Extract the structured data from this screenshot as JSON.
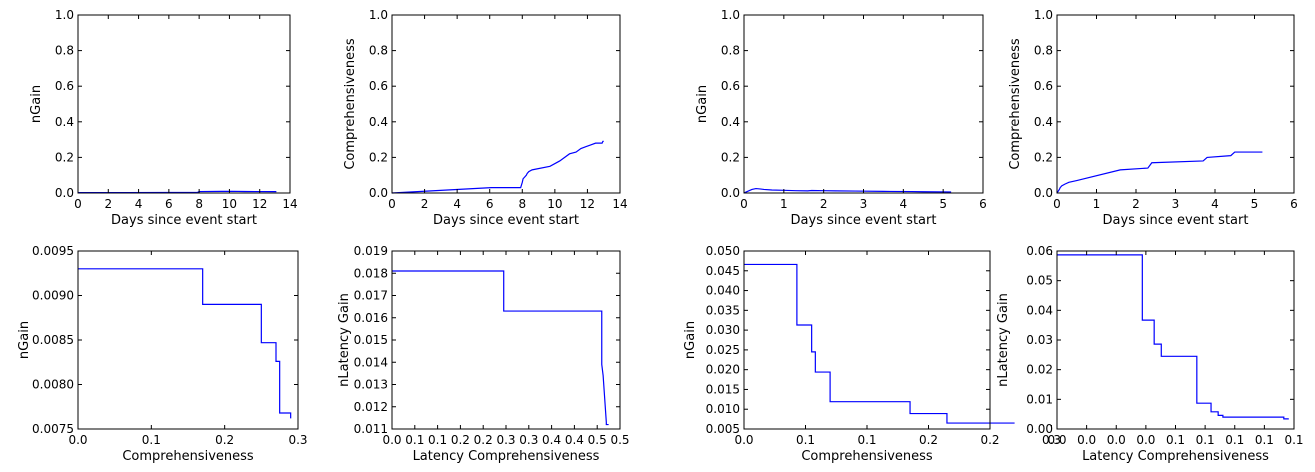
{
  "chart_data": [
    {
      "type": "line",
      "xlabel": "Days since event start",
      "ylabel": "nGain",
      "xlim": [
        0,
        14
      ],
      "ylim": [
        0.0,
        1.0
      ],
      "xticks": [
        "0",
        "2",
        "4",
        "6",
        "8",
        "10",
        "12",
        "14"
      ],
      "yticks": [
        "0.0",
        "0.2",
        "0.4",
        "0.6",
        "0.8",
        "1.0"
      ],
      "series": [
        {
          "color": "#0000ff",
          "x": [
            0,
            6,
            7.9,
            8.0,
            9.5,
            10.2,
            11,
            12,
            13.1
          ],
          "y": [
            0.002,
            0.003,
            0.004,
            0.008,
            0.009,
            0.0095,
            0.0085,
            0.008,
            0.0075
          ]
        }
      ]
    },
    {
      "type": "line",
      "xlabel": "Days since event start",
      "ylabel": "Comprehensiveness",
      "xlim": [
        0,
        14
      ],
      "ylim": [
        0.0,
        1.0
      ],
      "xticks": [
        "0",
        "2",
        "4",
        "6",
        "8",
        "10",
        "12",
        "14"
      ],
      "yticks": [
        "0.0",
        "0.2",
        "0.4",
        "0.6",
        "0.8",
        "1.0"
      ],
      "series": [
        {
          "color": "#0000ff",
          "x": [
            0,
            6.1,
            7.9,
            8.0,
            8.05,
            8.15,
            8.25,
            8.3,
            8.4,
            8.6,
            9.7,
            10.3,
            10.9,
            11.3,
            11.6,
            11.9,
            12.2,
            12.5,
            12.9,
            12.95,
            13.0
          ],
          "y": [
            0.0,
            0.03,
            0.03,
            0.06,
            0.08,
            0.09,
            0.1,
            0.11,
            0.12,
            0.13,
            0.15,
            0.18,
            0.22,
            0.23,
            0.25,
            0.26,
            0.27,
            0.28,
            0.28,
            0.29,
            0.29
          ]
        }
      ]
    },
    {
      "type": "line",
      "xlabel": "Days since event start",
      "ylabel": "nGain",
      "xlim": [
        0,
        6
      ],
      "ylim": [
        0.0,
        1.0
      ],
      "xticks": [
        "0",
        "1",
        "2",
        "3",
        "4",
        "5",
        "6"
      ],
      "yticks": [
        "0.0",
        "0.2",
        "0.4",
        "0.6",
        "0.8",
        "1.0"
      ],
      "series": [
        {
          "color": "#0000ff",
          "x": [
            0.0,
            0.05,
            0.1,
            0.15,
            0.2,
            0.3,
            0.4,
            0.5,
            0.7,
            1.0,
            1.3,
            1.6,
            1.7,
            2.0,
            2.3,
            2.8,
            3.5,
            4.2,
            4.5,
            5.2
          ],
          "y": [
            0.0,
            0.005,
            0.01,
            0.015,
            0.02,
            0.025,
            0.023,
            0.02,
            0.017,
            0.015,
            0.013,
            0.012,
            0.014,
            0.013,
            0.012,
            0.011,
            0.009,
            0.008,
            0.007,
            0.006
          ]
        }
      ]
    },
    {
      "type": "line",
      "xlabel": "Days since event start",
      "ylabel": "Comprehensiveness",
      "xlim": [
        0,
        6
      ],
      "ylim": [
        0.0,
        1.0
      ],
      "xticks": [
        "0",
        "1",
        "2",
        "3",
        "4",
        "5",
        "6"
      ],
      "yticks": [
        "0.0",
        "0.2",
        "0.4",
        "0.6",
        "0.8",
        "1.0"
      ],
      "series": [
        {
          "color": "#0000ff",
          "x": [
            0.0,
            0.03,
            0.06,
            0.08,
            0.12,
            0.2,
            0.3,
            0.5,
            1.6,
            2.3,
            2.4,
            3.7,
            3.8,
            4.4,
            4.5,
            5.2
          ],
          "y": [
            0.0,
            0.01,
            0.02,
            0.03,
            0.04,
            0.05,
            0.06,
            0.07,
            0.13,
            0.14,
            0.17,
            0.18,
            0.2,
            0.21,
            0.23,
            0.23
          ]
        }
      ]
    },
    {
      "type": "line",
      "xlabel": "Comprehensiveness",
      "ylabel": "nGain",
      "xlim": [
        0.0,
        0.3
      ],
      "ylim": [
        0.0075,
        0.0095
      ],
      "xticks": [
        "0.0",
        "0.1",
        "0.2",
        "0.3"
      ],
      "yticks": [
        "0.0075",
        "0.0080",
        "0.0085",
        "0.0090",
        "0.0095"
      ],
      "series": [
        {
          "color": "#0000ff",
          "x": [
            0.0,
            0.17,
            0.17,
            0.25,
            0.25,
            0.27,
            0.27,
            0.275,
            0.275,
            0.29,
            0.29
          ],
          "y": [
            0.0093,
            0.0093,
            0.0089,
            0.0089,
            0.00847,
            0.00847,
            0.00826,
            0.00826,
            0.00768,
            0.00768,
            0.00762
          ]
        }
      ]
    },
    {
      "type": "line",
      "xlabel": "Latency Comprehensiveness",
      "ylabel": "nLatency Gain",
      "xlim": [
        0.0,
        0.5
      ],
      "ylim": [
        0.011,
        0.019
      ],
      "xticks": [
        "0.0",
        "0.05",
        "0.1",
        "0.15",
        "0.2",
        "0.25",
        "0.3",
        "0.35",
        "0.4",
        "0.45",
        "0.5"
      ],
      "tick_labels_printed": [
        "0.0",
        "0.1",
        "0.1",
        "0.2",
        "0.2",
        "0.3",
        "0.3",
        "0.4",
        "0.4",
        "0.5",
        "0.5"
      ],
      "yticks": [
        "0.011",
        "0.012",
        "0.013",
        "0.014",
        "0.015",
        "0.016",
        "0.017",
        "0.018",
        "0.019"
      ],
      "series": [
        {
          "color": "#0000ff",
          "x": [
            0.0,
            0.245,
            0.245,
            0.46,
            0.46,
            0.463,
            0.466,
            0.47,
            0.47,
            0.475
          ],
          "y": [
            0.0181,
            0.0181,
            0.0163,
            0.0163,
            0.0139,
            0.0134,
            0.0125,
            0.0113,
            0.0112,
            0.0112
          ]
        }
      ]
    },
    {
      "type": "line",
      "xlabel": "Comprehensiveness",
      "ylabel": "nGain",
      "xlim": [
        0.0,
        0.2
      ],
      "ylim": [
        0.005,
        0.05
      ],
      "xticks": [
        "0.00",
        "0.05",
        "0.10",
        "0.15",
        "0.20",
        "0.25"
      ],
      "tick_labels_printed": [
        "0.0",
        "0.1",
        "0.1",
        "0.2",
        "0.2",
        "0.3"
      ],
      "yticks": [
        "0.005",
        "0.010",
        "0.015",
        "0.020",
        "0.025",
        "0.030",
        "0.035",
        "0.040",
        "0.045",
        "0.050"
      ],
      "series": [
        {
          "color": "#0000ff",
          "x": [
            0.0,
            0.043,
            0.043,
            0.055,
            0.055,
            0.058,
            0.058,
            0.07,
            0.07,
            0.135,
            0.135,
            0.165,
            0.165,
            0.22
          ],
          "y": [
            0.0466,
            0.0466,
            0.0313,
            0.0313,
            0.0245,
            0.0245,
            0.0194,
            0.0194,
            0.0119,
            0.0119,
            0.0089,
            0.0089,
            0.0065,
            0.0065
          ]
        }
      ]
    },
    {
      "type": "line",
      "xlabel": "Latency Comprehensiveness",
      "ylabel": "nLatency Gain",
      "xlim": [
        0.0,
        0.1
      ],
      "ylim": [
        0.0,
        0.06
      ],
      "xticks": [
        "0.0",
        "0.0125",
        "0.025",
        "0.0375",
        "0.05",
        "0.0625",
        "0.075",
        "0.0875",
        "0.1"
      ],
      "tick_labels_printed": [
        "0.0",
        "0.0",
        "0.0",
        "0.0",
        "0.1",
        "0.1",
        "0.1",
        "0.1",
        "0.1"
      ],
      "yticks": [
        "0.00",
        "0.01",
        "0.02",
        "0.03",
        "0.04",
        "0.05",
        "0.06"
      ],
      "series": [
        {
          "color": "#0000ff",
          "x": [
            0.0,
            0.036,
            0.036,
            0.041,
            0.041,
            0.044,
            0.044,
            0.059,
            0.059,
            0.065,
            0.065,
            0.068,
            0.068,
            0.07,
            0.07,
            0.0957,
            0.0957,
            0.0978
          ],
          "y": [
            0.0587,
            0.0587,
            0.0367,
            0.0367,
            0.0286,
            0.0286,
            0.0245,
            0.0245,
            0.0087,
            0.0087,
            0.0058,
            0.0058,
            0.0046,
            0.0046,
            0.004,
            0.004,
            0.0034,
            0.0034
          ]
        }
      ]
    }
  ]
}
